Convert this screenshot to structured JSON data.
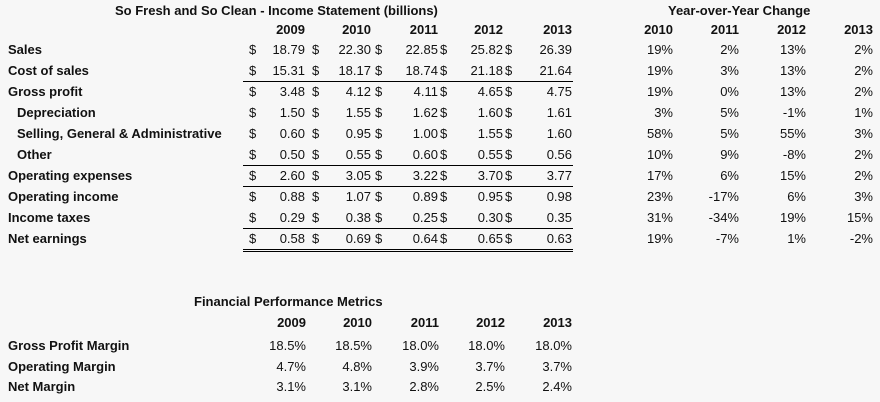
{
  "income_statement": {
    "title": "So Fresh and So Clean - Income Statement (billions)",
    "years": [
      "2009",
      "2010",
      "2011",
      "2012",
      "2013"
    ],
    "currency_symbol": "$",
    "rows": [
      {
        "label": "Sales",
        "indent": false,
        "values": [
          "18.79",
          "22.30",
          "22.85",
          "25.82",
          "26.39"
        ],
        "rule_below": "single-none"
      },
      {
        "label": "Cost of sales",
        "indent": false,
        "values": [
          "15.31",
          "18.17",
          "18.74",
          "21.18",
          "21.64"
        ],
        "rule_below": "single"
      },
      {
        "label": "Gross profit",
        "indent": false,
        "values": [
          "3.48",
          "4.12",
          "4.11",
          "4.65",
          "4.75"
        ],
        "rule_below": "none"
      },
      {
        "label": "Depreciation",
        "indent": true,
        "values": [
          "1.50",
          "1.55",
          "1.62",
          "1.60",
          "1.61"
        ],
        "rule_below": "none"
      },
      {
        "label": "Selling, General & Administrative",
        "indent": true,
        "values": [
          "0.60",
          "0.95",
          "1.00",
          "1.55",
          "1.60"
        ],
        "rule_below": "none"
      },
      {
        "label": "Other",
        "indent": true,
        "values": [
          "0.50",
          "0.55",
          "0.60",
          "0.55",
          "0.56"
        ],
        "rule_below": "single"
      },
      {
        "label": "Operating expenses",
        "indent": false,
        "values": [
          "2.60",
          "3.05",
          "3.22",
          "3.70",
          "3.77"
        ],
        "rule_below": "single"
      },
      {
        "label": "Operating income",
        "indent": false,
        "values": [
          "0.88",
          "1.07",
          "0.89",
          "0.95",
          "0.98"
        ],
        "rule_below": "none"
      },
      {
        "label": "Income taxes",
        "indent": false,
        "values": [
          "0.29",
          "0.38",
          "0.25",
          "0.30",
          "0.35"
        ],
        "rule_below": "single"
      },
      {
        "label": "Net earnings",
        "indent": false,
        "values": [
          "0.58",
          "0.69",
          "0.64",
          "0.65",
          "0.63"
        ],
        "rule_below": "double"
      }
    ]
  },
  "yoy": {
    "title": "Year-over-Year Change",
    "years": [
      "2010",
      "2011",
      "2012",
      "2013"
    ],
    "rows": [
      [
        "19%",
        "2%",
        "13%",
        "2%"
      ],
      [
        "19%",
        "3%",
        "13%",
        "2%"
      ],
      [
        "19%",
        "0%",
        "13%",
        "2%"
      ],
      [
        "3%",
        "5%",
        "-1%",
        "1%"
      ],
      [
        "58%",
        "5%",
        "55%",
        "3%"
      ],
      [
        "10%",
        "9%",
        "-8%",
        "2%"
      ],
      [
        "17%",
        "6%",
        "15%",
        "2%"
      ],
      [
        "23%",
        "-17%",
        "6%",
        "3%"
      ],
      [
        "31%",
        "-34%",
        "19%",
        "15%"
      ],
      [
        "19%",
        "-7%",
        "1%",
        "-2%"
      ]
    ]
  },
  "metrics": {
    "title": "Financial Performance Metrics",
    "years": [
      "2009",
      "2010",
      "2011",
      "2012",
      "2013"
    ],
    "rows": [
      {
        "label": "Gross Profit Margin",
        "values": [
          "18.5%",
          "18.5%",
          "18.0%",
          "18.0%",
          "18.0%"
        ]
      },
      {
        "label": "Operating Margin",
        "values": [
          "4.7%",
          "4.8%",
          "3.9%",
          "3.7%",
          "3.7%"
        ]
      },
      {
        "label": "Net Margin",
        "values": [
          "3.1%",
          "3.1%",
          "2.8%",
          "2.5%",
          "2.4%"
        ]
      }
    ]
  }
}
